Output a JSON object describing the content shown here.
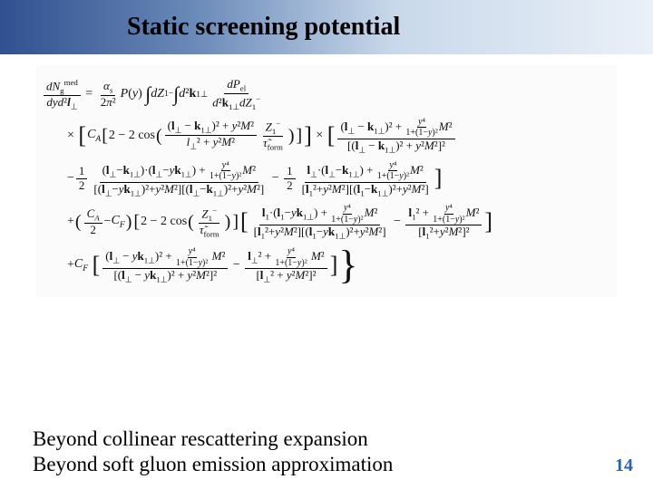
{
  "header": {
    "title": "Static screening potential",
    "gradient_from": "#305090",
    "gradient_to": "#eaf0f8"
  },
  "formula": {
    "lhs_num": "dN",
    "lhs_num_sup": "med",
    "lhs_num_sub": "g",
    "lhs_den": "dyd²l⊥",
    "alpha_num": "αₛ",
    "alpha_den": "2π²",
    "P": "P(y)",
    "int1": "dZ₁⁻",
    "int2": "d²k₁⊥",
    "pel_num": "dP",
    "pel_num_sub": "el",
    "pel_den": "d²k₁⊥dZ₁⁻",
    "CA": "C_A",
    "CF": "C_F",
    "two": "2",
    "cos": "cos",
    "tform": "τ̃_form",
    "M": "M",
    "y": "y",
    "l": "l⊥",
    "k": "k₁⊥",
    "l1": "l₁",
    "Z1": "Z₁⁻",
    "half": "1/2"
  },
  "footer": {
    "line1": "Beyond collinear rescattering expansion",
    "line2": "Beyond soft gluon emission approximation"
  },
  "page": "14",
  "style": {
    "title_fontsize": 28,
    "footer_fontsize": 23,
    "page_color": "#2a62b0",
    "text_color": "#000000",
    "formula_bg": "#fbfbfb"
  }
}
